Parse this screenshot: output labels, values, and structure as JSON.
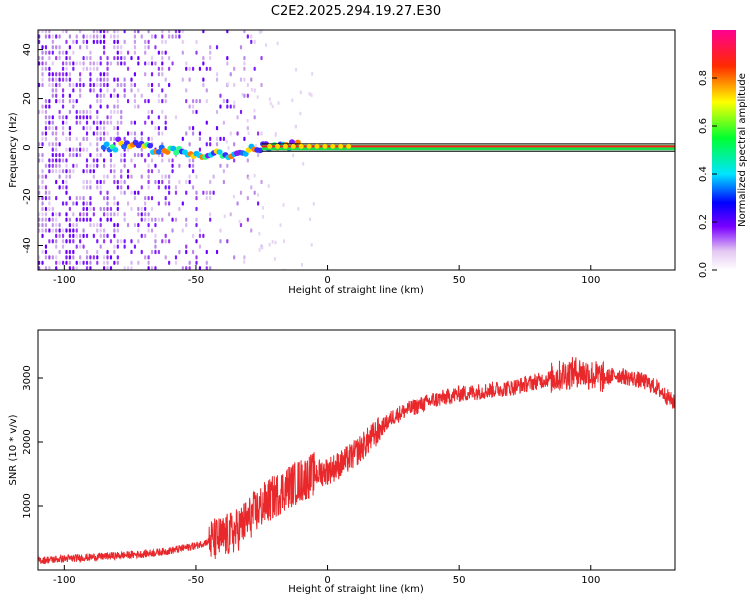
{
  "chart_data": [
    {
      "type": "heatmap",
      "title": "C2E2.2025.294.19.27.E30",
      "xlabel": "Height of straight line (km)",
      "ylabel": "Frequency (Hz)",
      "xlim": [
        -110,
        132
      ],
      "ylim": [
        -50,
        48
      ],
      "xticks": [
        -100,
        -50,
        0,
        50,
        100
      ],
      "yticks": [
        -40,
        -20,
        0,
        20,
        40
      ],
      "colorbar": {
        "label": "Normalized spectral amplitude",
        "range": [
          0,
          1
        ],
        "ticks": [
          "0.0",
          "0.2",
          "0.4",
          "0.6",
          "0.8"
        ]
      },
      "signal_track": [
        {
          "x": -80,
          "y": 2
        },
        {
          "x": -70,
          "y": 0
        },
        {
          "x": -60,
          "y": -1
        },
        {
          "x": -50,
          "y": -3
        },
        {
          "x": -42,
          "y": -2
        },
        {
          "x": -36,
          "y": -4
        },
        {
          "x": -30,
          "y": -1
        },
        {
          "x": -25,
          "y": 0
        },
        {
          "x": -10,
          "y": 1
        },
        {
          "x": 0,
          "y": 0.5
        },
        {
          "x": 50,
          "y": 0.5
        },
        {
          "x": 100,
          "y": 0.5
        },
        {
          "x": 132,
          "y": 0.5
        }
      ],
      "reference_lines_hz": [
        -1.5,
        1.5
      ]
    },
    {
      "type": "line",
      "xlabel": "Height of straight line (km)",
      "ylabel": "SNR (10 * v/v)",
      "xlim": [
        -110,
        132
      ],
      "ylim": [
        0,
        3750
      ],
      "xticks": [
        -100,
        -50,
        0,
        50,
        100
      ],
      "yticks": [
        1000,
        2000,
        3000
      ],
      "series": [
        {
          "name": "SNR",
          "color": "#e8282b",
          "x": [
            -110,
            -90,
            -70,
            -60,
            -50,
            -45,
            -40,
            -35,
            -30,
            -25,
            -20,
            -15,
            -10,
            -5,
            0,
            5,
            10,
            15,
            20,
            25,
            30,
            40,
            50,
            60,
            70,
            80,
            90,
            95,
            100,
            105,
            110,
            115,
            120,
            125,
            132
          ],
          "y": [
            150,
            200,
            250,
            300,
            380,
            450,
            500,
            600,
            800,
            1000,
            1150,
            1300,
            1400,
            1500,
            1550,
            1650,
            1800,
            2000,
            2200,
            2400,
            2500,
            2650,
            2750,
            2800,
            2850,
            2950,
            3050,
            3100,
            3050,
            3000,
            3050,
            3000,
            2950,
            2850,
            2600
          ]
        }
      ]
    }
  ]
}
